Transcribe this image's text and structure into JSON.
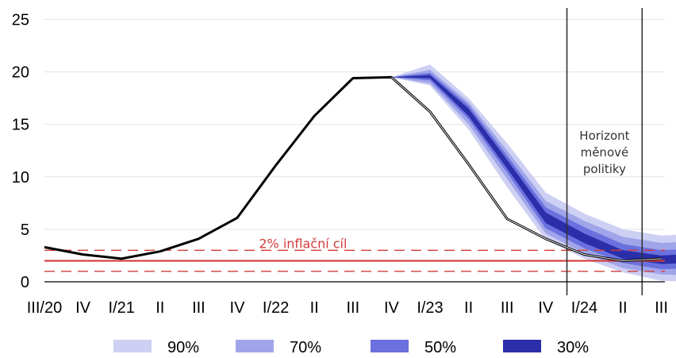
{
  "chart_data": {
    "type": "area",
    "title": "",
    "xlabel": "",
    "ylabel": "",
    "ylim": [
      0,
      26
    ],
    "yticks": [
      0,
      5,
      10,
      15,
      20,
      25
    ],
    "grid": true,
    "x_tick_labels": [
      "III/20",
      "IV",
      "I/21",
      "II",
      "III",
      "IV",
      "I/22",
      "II",
      "III",
      "IV",
      "I/23",
      "II",
      "III",
      "IV",
      "I/24",
      "II",
      "III"
    ],
    "history": [
      3.3,
      2.6,
      2.2,
      2.9,
      4.1,
      6.1,
      11.1,
      15.8,
      19.4,
      19.5,
      16.2,
      11.2,
      6.0,
      4.1,
      2.6,
      2.0,
      2.2
    ],
    "forecast_start_index": 9,
    "bands": [
      {
        "name": "90%",
        "color": "#cdd0f3",
        "lower": [
          19.5,
          18.7,
          14.5,
          9.0,
          4.0,
          2.2,
          0.9,
          0.1,
          0.0
        ],
        "upper": [
          19.5,
          20.7,
          17.5,
          13.2,
          8.5,
          6.5,
          5.0,
          4.4,
          4.6
        ]
      },
      {
        "name": "70%",
        "color": "#a0a5ea",
        "lower": [
          19.5,
          18.9,
          15.0,
          9.8,
          4.6,
          2.7,
          1.3,
          0.7,
          0.6
        ],
        "upper": [
          19.5,
          20.2,
          17.1,
          12.5,
          7.7,
          5.8,
          4.3,
          3.7,
          3.9
        ]
      },
      {
        "name": "50%",
        "color": "#6a70dd",
        "lower": [
          19.5,
          19.2,
          15.5,
          10.4,
          5.1,
          3.2,
          1.8,
          1.2,
          1.3
        ],
        "upper": [
          19.5,
          19.9,
          16.8,
          12.0,
          7.1,
          5.2,
          3.6,
          3.0,
          3.2
        ]
      },
      {
        "name": "30%",
        "color": "#2a2ea8",
        "lower": [
          19.5,
          19.4,
          15.8,
          10.8,
          5.6,
          3.7,
          2.2,
          1.7,
          1.8
        ],
        "upper": [
          19.5,
          19.7,
          16.5,
          11.6,
          6.6,
          4.6,
          3.0,
          2.5,
          2.7
        ]
      }
    ],
    "target": {
      "label": "2% inflační cíl",
      "value": 2,
      "band_low": 1,
      "band_high": 3,
      "color": "#d23c3c"
    },
    "horizon": {
      "label_lines": [
        "Horizont",
        "měnové",
        "politiky"
      ],
      "start_x": 13.55,
      "end_x": 15.5
    },
    "legend": [
      "90%",
      "70%",
      "50%",
      "30%"
    ],
    "legend_position": "bottom"
  }
}
